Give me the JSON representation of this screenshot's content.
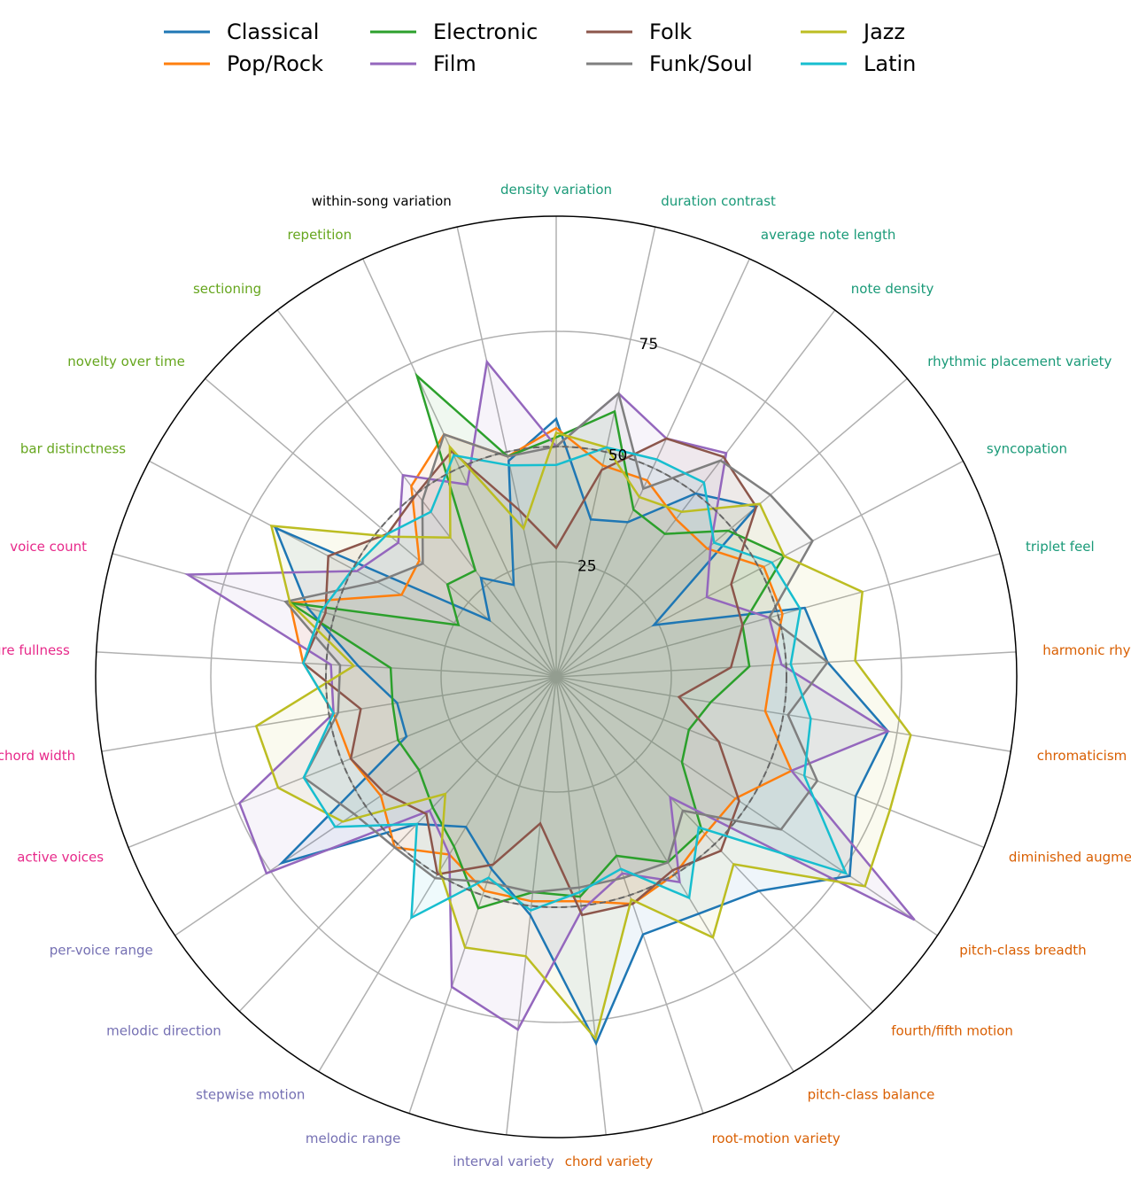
{
  "chart_data": {
    "type": "radar",
    "title": "",
    "grid": true,
    "legend_position": "top",
    "rmax": 100,
    "radial_ticks": [
      25,
      50,
      75
    ],
    "reference_ring": 50,
    "axes": [
      {
        "label": "density variation",
        "color": "#1a9a78"
      },
      {
        "label": "duration contrast",
        "color": "#1a9a78"
      },
      {
        "label": "average note length",
        "color": "#1a9a78"
      },
      {
        "label": "note density",
        "color": "#1a9a78"
      },
      {
        "label": "rhythmic placement variety",
        "color": "#1a9a78"
      },
      {
        "label": "syncopation",
        "color": "#1a9a78"
      },
      {
        "label": "triplet feel",
        "color": "#1a9a78"
      },
      {
        "label": "harmonic rhythm",
        "color": "#d95f02"
      },
      {
        "label": "chromaticism",
        "color": "#d95f02"
      },
      {
        "label": "diminished augmented colour",
        "color": "#d95f02"
      },
      {
        "label": "pitch-class breadth",
        "color": "#d95f02"
      },
      {
        "label": "fourth/fifth motion",
        "color": "#d95f02"
      },
      {
        "label": "pitch-class balance",
        "color": "#d95f02"
      },
      {
        "label": "root-motion variety",
        "color": "#d95f02"
      },
      {
        "label": "chord variety",
        "color": "#d95f02"
      },
      {
        "label": "interval variety",
        "color": "#7570b3"
      },
      {
        "label": "melodic range",
        "color": "#7570b3"
      },
      {
        "label": "stepwise motion",
        "color": "#7570b3"
      },
      {
        "label": "melodic direction",
        "color": "#7570b3"
      },
      {
        "label": "per-voice range",
        "color": "#7570b3"
      },
      {
        "label": "active voices",
        "color": "#e7298a"
      },
      {
        "label": "chord width",
        "color": "#e7298a"
      },
      {
        "label": "texture fullness",
        "color": "#e7298a"
      },
      {
        "label": "voice count",
        "color": "#e7298a"
      },
      {
        "label": "bar distinctness",
        "color": "#66a61e"
      },
      {
        "label": "novelty over time",
        "color": "#66a61e"
      },
      {
        "label": "sectioning",
        "color": "#66a61e"
      },
      {
        "label": "repetition",
        "color": "#66a61e"
      },
      {
        "label": "within-song variation",
        "color": "#000000"
      }
    ],
    "series": [
      {
        "name": "Classical",
        "color": "#1f77b4",
        "values": [
          56,
          35,
          37,
          50,
          57,
          24,
          56,
          59,
          73,
          70,
          77,
          64,
          60,
          59,
          80,
          52,
          44,
          38,
          44,
          72,
          35,
          35,
          43,
          56,
          69,
          19,
          27,
          22,
          48
        ]
      },
      {
        "name": "Pop/Rock",
        "color": "#ff7f0e",
        "values": [
          54,
          47,
          47,
          43,
          43,
          51,
          51,
          47,
          46,
          55,
          47,
          47,
          50,
          52,
          49,
          49,
          49,
          45,
          51,
          46,
          48,
          49,
          55,
          60,
          38,
          39,
          52,
          58,
          49
        ]
      },
      {
        "name": "Electronic",
        "color": "#2ca02c",
        "values": [
          52,
          59,
          40,
          39,
          49,
          56,
          42,
          42,
          34,
          31,
          33,
          46,
          47,
          41,
          48,
          47,
          53,
          43,
          39,
          36,
          37,
          36,
          36,
          60,
          24,
          31,
          29,
          72,
          49
        ]
      },
      {
        "name": "Film",
        "color": "#9467bd",
        "values": [
          50,
          63,
          57,
          61,
          44,
          37,
          48,
          49,
          73,
          55,
          94,
          36,
          52,
          45,
          51,
          77,
          71,
          45,
          40,
          76,
          74,
          49,
          49,
          83,
          49,
          45,
          55,
          46,
          70
        ]
      },
      {
        "name": "Folk",
        "color": "#8c564b",
        "values": [
          28,
          46,
          57,
          60,
          57,
          43,
          42,
          38,
          27,
          38,
          48,
          52,
          49,
          52,
          52,
          32,
          43,
          50,
          41,
          45,
          48,
          43,
          55,
          52,
          56,
          48,
          50,
          54,
          37
        ]
      },
      {
        "name": "Funk/Soul",
        "color": "#7f7f7f",
        "values": [
          50,
          63,
          45,
          59,
          61,
          63,
          48,
          59,
          51,
          61,
          59,
          40,
          47,
          46,
          46,
          47,
          47,
          51,
          51,
          53,
          59,
          48,
          47,
          61,
          44,
          38,
          48,
          58,
          49
        ]
      },
      {
        "name": "Jazz",
        "color": "#bcbd22",
        "values": [
          53,
          51,
          43,
          45,
          58,
          56,
          69,
          65,
          78,
          78,
          81,
          56,
          66,
          51,
          79,
          61,
          62,
          49,
          35,
          56,
          65,
          66,
          44,
          60,
          70,
          47,
          38,
          55,
          33
        ]
      },
      {
        "name": "Latin",
        "color": "#17becf",
        "values": [
          46,
          51,
          52,
          53,
          45,
          53,
          55,
          51,
          56,
          58,
          76,
          45,
          56,
          44,
          47,
          51,
          46,
          61,
          44,
          58,
          59,
          49,
          55,
          53,
          50,
          48,
          45,
          53,
          47
        ]
      }
    ]
  }
}
